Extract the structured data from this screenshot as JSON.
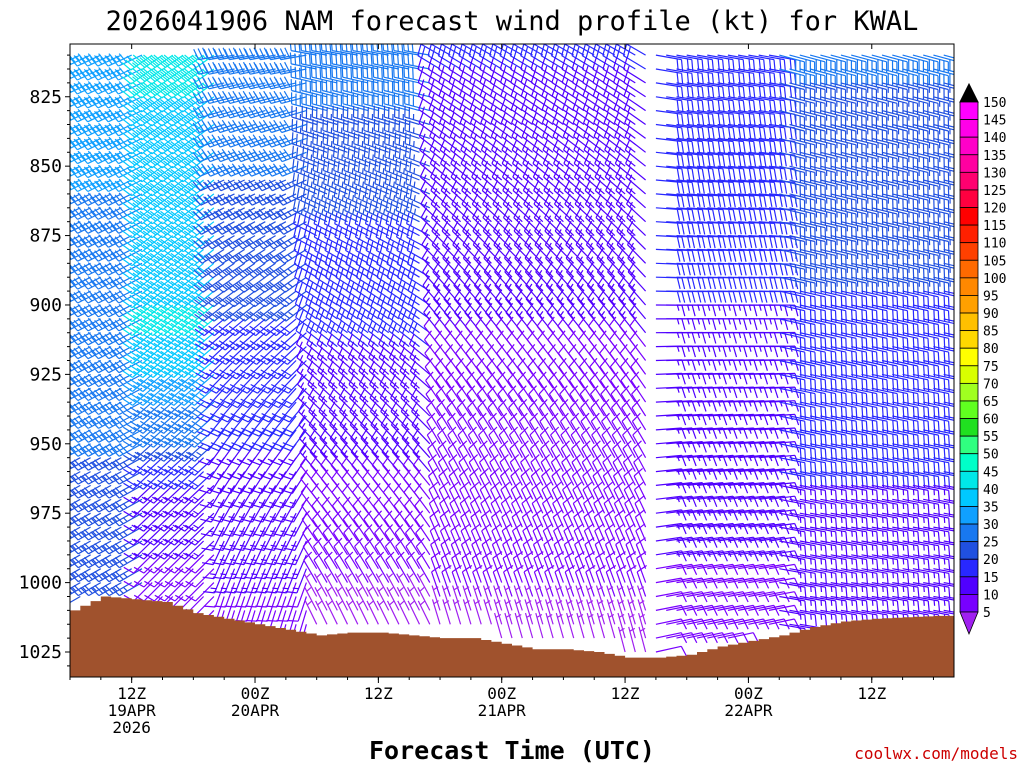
{
  "chart_data": {
    "type": "wind_barb_time_height",
    "title": "2026041906 NAM forecast wind profile (kt) for KWAL",
    "xlabel": "Forecast Time (UTC)",
    "ylabel": "",
    "credit": "coolwx.com/models",
    "y_axis": {
      "units": "hPa",
      "inverted": true,
      "range": [
        1034,
        806
      ],
      "ticks": [
        825,
        850,
        875,
        900,
        925,
        950,
        975,
        1000,
        1025
      ]
    },
    "x_axis": {
      "start_utc": "2026-04-19T06:00Z",
      "end_utc": "2026-04-22T20:00Z",
      "tick_labels": [
        {
          "time": "2026-04-19T12:00Z",
          "lines": [
            "12Z",
            "19APR",
            "2026"
          ]
        },
        {
          "time": "2026-04-20T00:00Z",
          "lines": [
            "00Z",
            "20APR"
          ]
        },
        {
          "time": "2026-04-20T12:00Z",
          "lines": [
            "12Z"
          ]
        },
        {
          "time": "2026-04-21T00:00Z",
          "lines": [
            "00Z",
            "21APR"
          ]
        },
        {
          "time": "2026-04-21T12:00Z",
          "lines": [
            "12Z"
          ]
        },
        {
          "time": "2026-04-22T00:00Z",
          "lines": [
            "00Z",
            "22APR"
          ]
        },
        {
          "time": "2026-04-22T12:00Z",
          "lines": [
            "12Z"
          ]
        }
      ]
    },
    "grid": false,
    "colorbar": {
      "placement": "right",
      "units": "kt",
      "levels": [
        5,
        10,
        15,
        20,
        25,
        30,
        35,
        40,
        45,
        50,
        55,
        60,
        65,
        70,
        75,
        80,
        85,
        90,
        95,
        100,
        105,
        110,
        115,
        120,
        125,
        130,
        135,
        140,
        145,
        150
      ],
      "colors": [
        "#a020f0",
        "#7800ff",
        "#5000ff",
        "#2828ff",
        "#2050e0",
        "#1878f0",
        "#10a0ff",
        "#00c8ff",
        "#00e8e8",
        "#00ffc8",
        "#30ff80",
        "#20e020",
        "#60ff20",
        "#a0ff20",
        "#d8ff00",
        "#ffff00",
        "#ffd800",
        "#ffc000",
        "#ffa000",
        "#ff8800",
        "#ff6a00",
        "#ff4000",
        "#ff2000",
        "#ff0000",
        "#ff0040",
        "#ff0070",
        "#ff00a0",
        "#ff00c8",
        "#ff00e8",
        "#ff00ff"
      ]
    },
    "terrain_color": "#a0522d",
    "surface_pressure": [
      {
        "time": "2026-04-19T06:00Z",
        "p": 1010
      },
      {
        "time": "2026-04-19T09:00Z",
        "p": 1005
      },
      {
        "time": "2026-04-19T15:00Z",
        "p": 1007
      },
      {
        "time": "2026-04-19T18:00Z",
        "p": 1011
      },
      {
        "time": "2026-04-19T21:00Z",
        "p": 1013
      },
      {
        "time": "2026-04-20T00:00Z",
        "p": 1015
      },
      {
        "time": "2026-04-20T03:00Z",
        "p": 1017
      },
      {
        "time": "2026-04-20T06:00Z",
        "p": 1019
      },
      {
        "time": "2026-04-20T09:00Z",
        "p": 1018
      },
      {
        "time": "2026-04-20T12:00Z",
        "p": 1018
      },
      {
        "time": "2026-04-20T15:00Z",
        "p": 1019
      },
      {
        "time": "2026-04-20T18:00Z",
        "p": 1020
      },
      {
        "time": "2026-04-20T21:00Z",
        "p": 1020
      },
      {
        "time": "2026-04-21T00:00Z",
        "p": 1022
      },
      {
        "time": "2026-04-21T03:00Z",
        "p": 1024
      },
      {
        "time": "2026-04-21T06:00Z",
        "p": 1024
      },
      {
        "time": "2026-04-21T09:00Z",
        "p": 1025
      },
      {
        "time": "2026-04-21T12:00Z",
        "p": 1027
      },
      {
        "time": "2026-04-21T15:00Z",
        "p": 1027
      },
      {
        "time": "2026-04-21T18:00Z",
        "p": 1026
      },
      {
        "time": "2026-04-21T21:00Z",
        "p": 1023
      },
      {
        "time": "2026-04-22T00:00Z",
        "p": 1021
      },
      {
        "time": "2026-04-22T03:00Z",
        "p": 1019
      },
      {
        "time": "2026-04-22T06:00Z",
        "p": 1016
      },
      {
        "time": "2026-04-22T09:00Z",
        "p": 1014
      },
      {
        "time": "2026-04-22T12:00Z",
        "p": 1013
      },
      {
        "time": "2026-04-22T18:00Z",
        "p": 1012
      },
      {
        "time": "2026-04-22T20:00Z",
        "p": 1012
      }
    ],
    "wind_profile": {
      "description": "Wind barbs (speed kt, direction from) on a 1-hourly x 5-hPa grid; values estimated piecewise",
      "time_step_hours": 1,
      "pressure_step_hpa": 5,
      "pressure_top": 810,
      "segments": [
        {
          "from_time": "2026-04-19T06:00Z",
          "to_time": "2026-04-19T14:00Z",
          "low": {
            "p": 1000,
            "spd": 25,
            "dir": 240
          },
          "high": {
            "p": 810,
            "spd": 35,
            "dir": 245
          }
        },
        {
          "from_time": "2026-04-19T14:00Z",
          "to_time": "2026-04-19T21:00Z",
          "low": {
            "p": 1000,
            "spd": 10,
            "dir": 225
          },
          "high": {
            "p": 810,
            "spd": 45,
            "dir": 235
          },
          "peak": {
            "p": 905,
            "spd": 48
          }
        },
        {
          "from_time": "2026-04-19T21:00Z",
          "to_time": "2026-04-20T06:00Z",
          "low": {
            "p": 1000,
            "spd": 12,
            "dir": 200
          },
          "high": {
            "p": 810,
            "spd": 32,
            "dir": 260
          }
        },
        {
          "from_time": "2026-04-20T06:00Z",
          "to_time": "2026-04-20T18:00Z",
          "low": {
            "p": 1000,
            "spd": 8,
            "dir": 330
          },
          "high": {
            "p": 810,
            "spd": 30,
            "dir": 280
          }
        },
        {
          "from_time": "2026-04-20T18:00Z",
          "to_time": "2026-04-21T15:00Z",
          "low": {
            "p": 1000,
            "spd": 8,
            "dir": 340
          },
          "high": {
            "p": 810,
            "spd": 18,
            "dir": 300
          }
        },
        {
          "from_time": "2026-04-21T15:00Z",
          "to_time": "2026-04-22T03:00Z",
          "low": {
            "p": 1000,
            "spd": 12,
            "dir": 80
          },
          "high": {
            "p": 810,
            "spd": 22,
            "dir": 100
          }
        },
        {
          "from_time": "2026-04-22T03:00Z",
          "to_time": "2026-04-22T20:00Z",
          "low": {
            "p": 1000,
            "spd": 15,
            "dir": 100
          },
          "high": {
            "p": 810,
            "spd": 28,
            "dir": 105
          }
        }
      ]
    }
  }
}
